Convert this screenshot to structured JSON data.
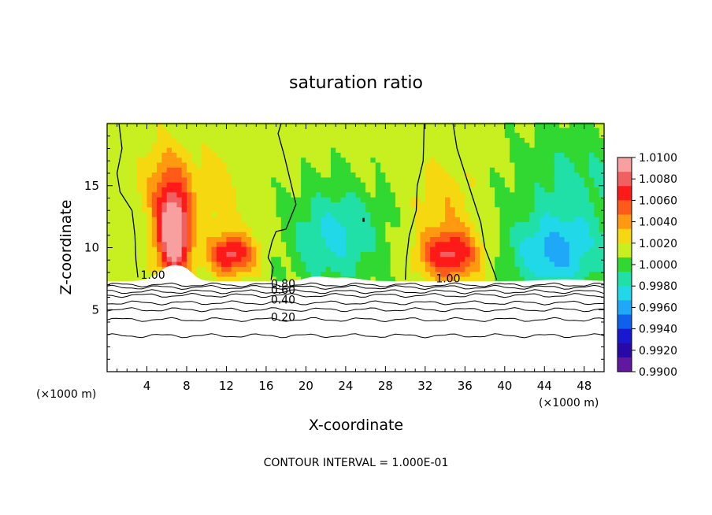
{
  "chart_data": {
    "type": "heatmap",
    "title": "saturation ratio",
    "xlabel": "X-coordinate",
    "ylabel": "Z-coordinate",
    "x_unit_left": "(×1000 m)",
    "x_unit_right": "(×1000 m)",
    "footer": "CONTOUR INTERVAL = 1.000E-01",
    "xlim": [
      0,
      50
    ],
    "ylim": [
      0,
      20
    ],
    "xticks": [
      4,
      8,
      12,
      16,
      20,
      24,
      28,
      32,
      36,
      40,
      44,
      48
    ],
    "yticks": [
      5,
      10,
      15
    ],
    "colorbar": {
      "min": 0.99,
      "max": 1.01,
      "labels": [
        "1.0100",
        "1.0080",
        "1.0060",
        "1.0040",
        "1.0020",
        "1.0000",
        "0.9980",
        "0.9960",
        "0.9940",
        "0.9920",
        "0.9900"
      ],
      "colors": [
        "#f8a0a0",
        "#f06060",
        "#ff1a1a",
        "#ff5a1a",
        "#ff9a10",
        "#f5d810",
        "#c8f020",
        "#32d832",
        "#20e0a8",
        "#20d8e8",
        "#20a8f8",
        "#1060f0",
        "#1818d0",
        "#2808a8",
        "#6018a0"
      ]
    },
    "contour_labels": [
      {
        "text": "1.00",
        "x": 4.6,
        "y": 7.5
      },
      {
        "text": "1.00",
        "x": 34.3,
        "y": 7.2
      },
      {
        "text": "0.80",
        "x": 17.7,
        "y": 6.8
      },
      {
        "text": "0.60",
        "x": 17.7,
        "y": 6.3
      },
      {
        "text": "0.40",
        "x": 17.7,
        "y": 5.5
      },
      {
        "text": "0.20",
        "x": 17.7,
        "y": 4.1
      }
    ],
    "low_contours": [
      0.8,
      0.7,
      0.6,
      0.5,
      0.4,
      0.3,
      0.2,
      0.1
    ]
  }
}
